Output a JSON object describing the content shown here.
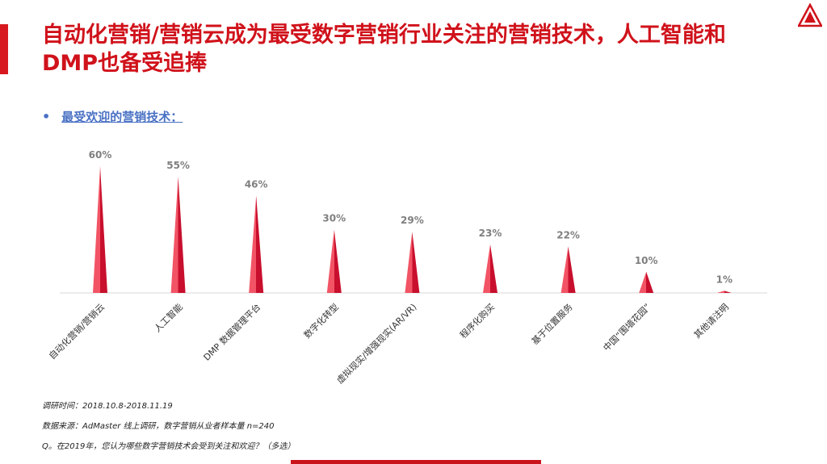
{
  "header": {
    "title": "自动化营销/营销云成为最受数字营销行业关注的营销技术，人工智能和DMP也备受追捧"
  },
  "subtitle": {
    "bullet": "•",
    "text": "最受欢迎的营销技术："
  },
  "chart_data": {
    "type": "bar",
    "categories": [
      "自动化营销/营销云",
      "人工智能",
      "DMP 数据管理平台",
      "数字化转型",
      "虚拟现实/增强现实(AR/VR)",
      "程序化购买",
      "基于位置服务",
      "中国“围墙花园”",
      "其他请注明"
    ],
    "values": [
      60,
      55,
      46,
      30,
      29,
      23,
      22,
      10,
      1
    ],
    "value_labels": [
      "60%",
      "55%",
      "46%",
      "30%",
      "29%",
      "23%",
      "22%",
      "10%",
      "1%"
    ],
    "ylim": [
      0,
      60
    ],
    "grid": false,
    "legend": "none",
    "bar_shape": "spike",
    "colors": {
      "spike_light": "#f25465",
      "spike_dark": "#c80f2d"
    }
  },
  "notes": {
    "line1": "调研时间：2018.10.8-2018.11.19",
    "line2": "数据来源：AdMaster  线上调研，数字营销从业者样本量 n=240",
    "line3": "Q。在2019年，您认为哪些数字营销技术会受到关注和欢迎？（多选）"
  },
  "colors": {
    "accent": "#d0121b",
    "subtitle": "#4a71c4"
  }
}
